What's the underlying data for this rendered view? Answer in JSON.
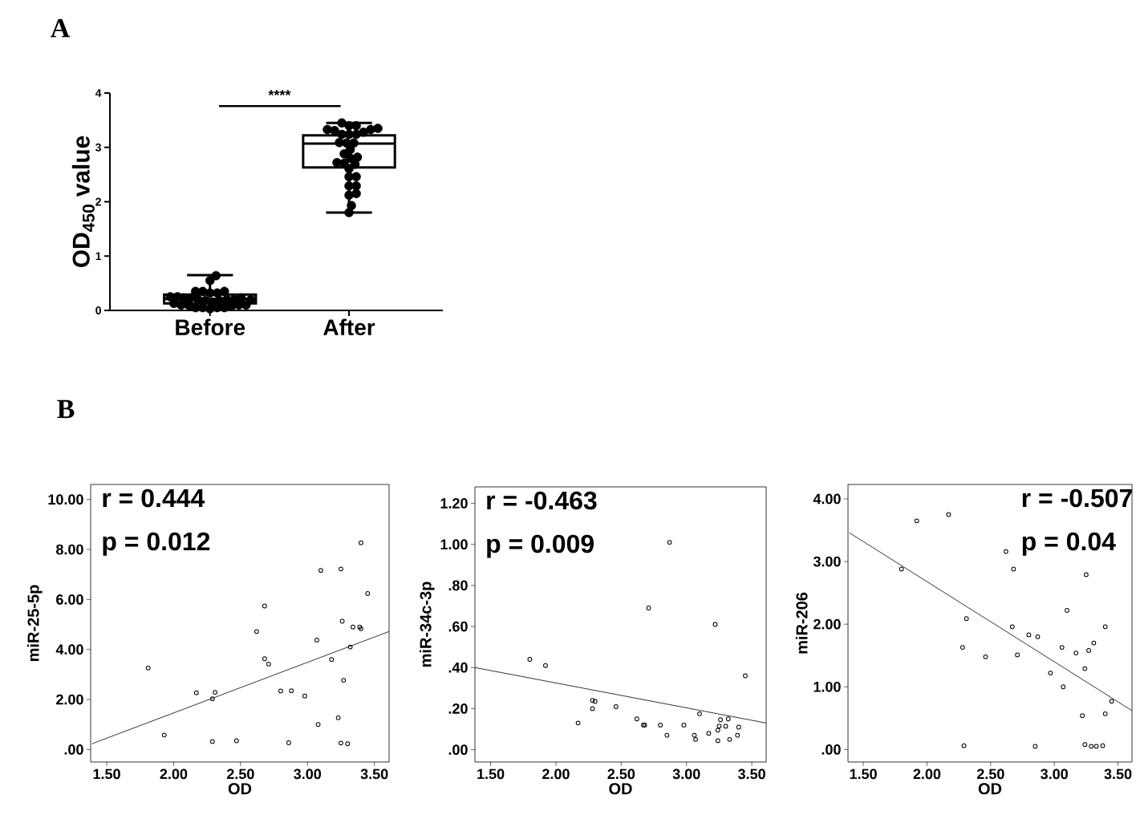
{
  "chart_data": [
    {
      "type": "box",
      "title": "A",
      "ylabel": "OD$_{450}$ value",
      "categories": [
        "Before",
        "After"
      ],
      "ylim": [
        0,
        4
      ],
      "yticks": [
        0,
        1,
        2,
        3,
        4
      ],
      "marker": "circle",
      "annotations": [
        "****"
      ],
      "boxes": [
        {
          "low": 0.03,
          "q1": 0.13,
          "median": 0.21,
          "q3": 0.29,
          "high": 0.65
        },
        {
          "low": 1.8,
          "q1": 2.63,
          "median": 3.07,
          "q3": 3.22,
          "high": 3.45
        }
      ],
      "series": [
        {
          "type": "scatter",
          "color": "#000000",
          "x": [
            "Before",
            "Before",
            "Before",
            "Before",
            "Before",
            "Before",
            "Before",
            "Before",
            "Before",
            "Before",
            "Before",
            "Before",
            "Before",
            "Before",
            "Before",
            "Before",
            "Before",
            "Before",
            "Before",
            "Before",
            "Before",
            "Before",
            "Before",
            "Before",
            "Before",
            "Before",
            "Before",
            "Before",
            "Before",
            "Before",
            "After",
            "After",
            "After",
            "After",
            "After",
            "After",
            "After",
            "After",
            "After",
            "After",
            "After",
            "After",
            "After",
            "After",
            "After",
            "After",
            "After",
            "After",
            "After",
            "After",
            "After",
            "After",
            "After",
            "After",
            "After",
            "After",
            "After",
            "After",
            "After",
            "After"
          ],
          "values": [
            0.64,
            0.55,
            0.35,
            0.32,
            0.35,
            0.32,
            0.35,
            0.2,
            0.08,
            0.15,
            0.03,
            0.25,
            0.23,
            0.2,
            0.2,
            0.05,
            0.1,
            0.05,
            0.1,
            0.13,
            0.1,
            0.25,
            0.23,
            0.05,
            0.23,
            0.2,
            0.18,
            0.1,
            0.18,
            0.05,
            3.45,
            3.4,
            3.4,
            3.31,
            3.35,
            3.33,
            3.33,
            3.24,
            3.24,
            3.24,
            3.28,
            3.09,
            3.08,
            3.08,
            2.96,
            2.8,
            2.88,
            2.82,
            2.71,
            2.61,
            2.72,
            2.69,
            2.46,
            2.46,
            2.29,
            2.29,
            2.15,
            2.12,
            1.93,
            1.8
          ]
        }
      ]
    },
    {
      "type": "scatter",
      "title": "B",
      "xlabel": "OD",
      "ylabel": "miR-25-5p",
      "marker": "circle",
      "annotations": [
        "r = 0.444",
        "p = 0.012"
      ],
      "xlim": [
        1.38,
        3.61
      ],
      "ylim": [
        -0.5,
        10.6
      ],
      "xticks": [
        {
          "value": 1.5,
          "label": "1.50"
        },
        {
          "value": 2,
          "label": "2.00"
        },
        {
          "value": 2.5,
          "label": "2.50"
        },
        {
          "value": 3,
          "label": "3.00"
        },
        {
          "value": 3.5,
          "label": "3.50"
        }
      ],
      "yticks": [
        {
          "value": 0,
          "label": ".00"
        },
        {
          "value": 2,
          "label": "2.00"
        },
        {
          "value": 4,
          "label": "4.00"
        },
        {
          "value": 6,
          "label": "6.00"
        },
        {
          "value": 8,
          "label": "8.00"
        },
        {
          "value": 10,
          "label": "10.00"
        }
      ],
      "series": [
        {
          "type": "scatter",
          "color": "#000000",
          "x": [
            1.81,
            1.93,
            2.17,
            2.29,
            2.31,
            2.29,
            2.47,
            2.62,
            2.68,
            2.68,
            2.71,
            2.8,
            2.88,
            2.86,
            2.98,
            3.07,
            3.08,
            3.1,
            3.18,
            3.25,
            3.26,
            3.23,
            3.27,
            3.25,
            3.3,
            3.32,
            3.34,
            3.39,
            3.4,
            3.4,
            3.45
          ],
          "values": [
            3.26,
            0.58,
            2.27,
            2.03,
            2.29,
            0.32,
            0.35,
            4.72,
            5.74,
            3.63,
            3.42,
            2.34,
            2.35,
            0.27,
            2.14,
            4.38,
            1.0,
            7.16,
            3.6,
            7.22,
            5.13,
            1.27,
            2.77,
            0.26,
            0.23,
            4.1,
            4.9,
            4.9,
            4.83,
            8.27,
            6.24
          ]
        },
        {
          "type": "line",
          "marker": "none",
          "color": "#000000",
          "x": [
            1.39,
            3.61
          ],
          "values": [
            0.23,
            4.72
          ]
        }
      ]
    },
    {
      "type": "scatter",
      "xlabel": "OD",
      "ylabel": "miR-34c-3p",
      "marker": "circle",
      "annotations": [
        "r = -0.463",
        "p = 0.009"
      ],
      "xlim": [
        1.38,
        3.61
      ],
      "ylim": [
        -0.06,
        1.28
      ],
      "xticks": [
        {
          "value": 1.5,
          "label": "1.50"
        },
        {
          "value": 2,
          "label": "2.00"
        },
        {
          "value": 2.5,
          "label": "2.50"
        },
        {
          "value": 3,
          "label": "3.00"
        },
        {
          "value": 3.5,
          "label": "3.50"
        }
      ],
      "yticks": [
        {
          "value": 0,
          "label": ".00"
        },
        {
          "value": 0.2,
          "label": ".20"
        },
        {
          "value": 0.4,
          "label": ".40"
        },
        {
          "value": 0.6,
          "label": ".60"
        },
        {
          "value": 0.8,
          "label": ".80"
        },
        {
          "value": 1,
          "label": "1.00"
        },
        {
          "value": 1.2,
          "label": "1.20"
        }
      ],
      "series": [
        {
          "type": "scatter",
          "color": "#000000",
          "x": [
            1.8,
            1.92,
            2.17,
            2.28,
            2.3,
            2.28,
            2.46,
            2.62,
            2.67,
            2.68,
            2.71,
            2.8,
            2.85,
            2.87,
            2.98,
            3.06,
            3.07,
            3.1,
            3.17,
            3.22,
            3.24,
            3.25,
            3.26,
            3.24,
            3.3,
            3.32,
            3.33,
            3.39,
            3.4,
            3.45
          ],
          "values": [
            0.44,
            0.41,
            0.13,
            0.24,
            0.235,
            0.2,
            0.21,
            0.15,
            0.12,
            0.12,
            0.69,
            0.12,
            0.07,
            1.01,
            0.12,
            0.07,
            0.05,
            0.175,
            0.08,
            0.61,
            0.095,
            0.115,
            0.146,
            0.044,
            0.114,
            0.15,
            0.05,
            0.07,
            0.11,
            0.36
          ]
        },
        {
          "type": "line",
          "marker": "none",
          "color": "#000000",
          "x": [
            1.38,
            3.61
          ],
          "values": [
            0.4,
            0.13
          ]
        }
      ]
    },
    {
      "type": "scatter",
      "xlabel": "OD",
      "ylabel": "miR-206",
      "marker": "circle",
      "annotations": [
        "r = -0.507",
        "p = 0.04"
      ],
      "xlim": [
        1.38,
        3.61
      ],
      "ylim": [
        -0.2,
        4.23
      ],
      "xticks": [
        {
          "value": 1.5,
          "label": "1.50"
        },
        {
          "value": 2,
          "label": "2.00"
        },
        {
          "value": 2.5,
          "label": "2.50"
        },
        {
          "value": 3,
          "label": "3.00"
        },
        {
          "value": 3.5,
          "label": "3.50"
        }
      ],
      "yticks": [
        {
          "value": 0,
          "label": ".00"
        },
        {
          "value": 1,
          "label": "1.00"
        },
        {
          "value": 2,
          "label": "2.00"
        },
        {
          "value": 3,
          "label": "3.00"
        },
        {
          "value": 4,
          "label": "4.00"
        }
      ],
      "series": [
        {
          "type": "scatter",
          "color": "#000000",
          "x": [
            1.8,
            1.92,
            2.17,
            2.31,
            2.28,
            2.29,
            2.46,
            2.62,
            2.68,
            2.67,
            2.71,
            2.8,
            2.87,
            2.85,
            2.97,
            3.06,
            3.07,
            3.1,
            3.17,
            3.22,
            3.24,
            3.25,
            3.24,
            3.27,
            3.29,
            3.33,
            3.31,
            3.38,
            3.4,
            3.4,
            3.45
          ],
          "values": [
            2.88,
            3.65,
            3.75,
            2.09,
            1.63,
            0.06,
            1.48,
            3.16,
            2.88,
            1.96,
            1.51,
            1.83,
            1.8,
            0.05,
            1.22,
            1.63,
            1.0,
            2.22,
            1.54,
            0.54,
            1.29,
            2.79,
            0.08,
            1.58,
            0.05,
            0.05,
            1.7,
            0.06,
            1.96,
            0.57,
            0.77
          ]
        },
        {
          "type": "line",
          "marker": "none",
          "color": "#000000",
          "x": [
            1.39,
            3.61
          ],
          "values": [
            3.46,
            0.62
          ]
        }
      ]
    }
  ]
}
